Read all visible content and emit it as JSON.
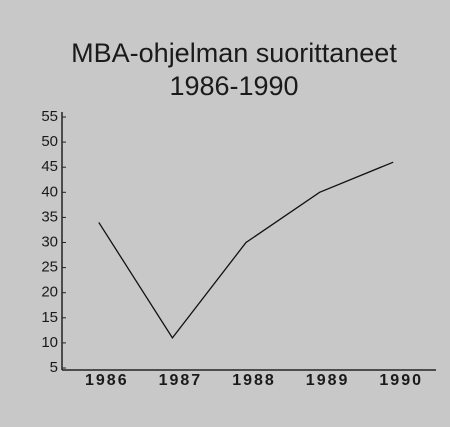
{
  "chart_data": {
    "type": "line",
    "title": "MBA-ohjelman suorittaneet",
    "subtitle": "1986-1990",
    "categories": [
      "1986",
      "1987",
      "1988",
      "1989",
      "1990"
    ],
    "values": [
      34,
      11,
      30,
      40,
      46
    ],
    "color": "#111111",
    "ylim": [
      5,
      55
    ],
    "yticks": [
      5,
      10,
      15,
      20,
      25,
      30,
      35,
      40,
      45,
      50,
      55
    ],
    "grid": false
  }
}
